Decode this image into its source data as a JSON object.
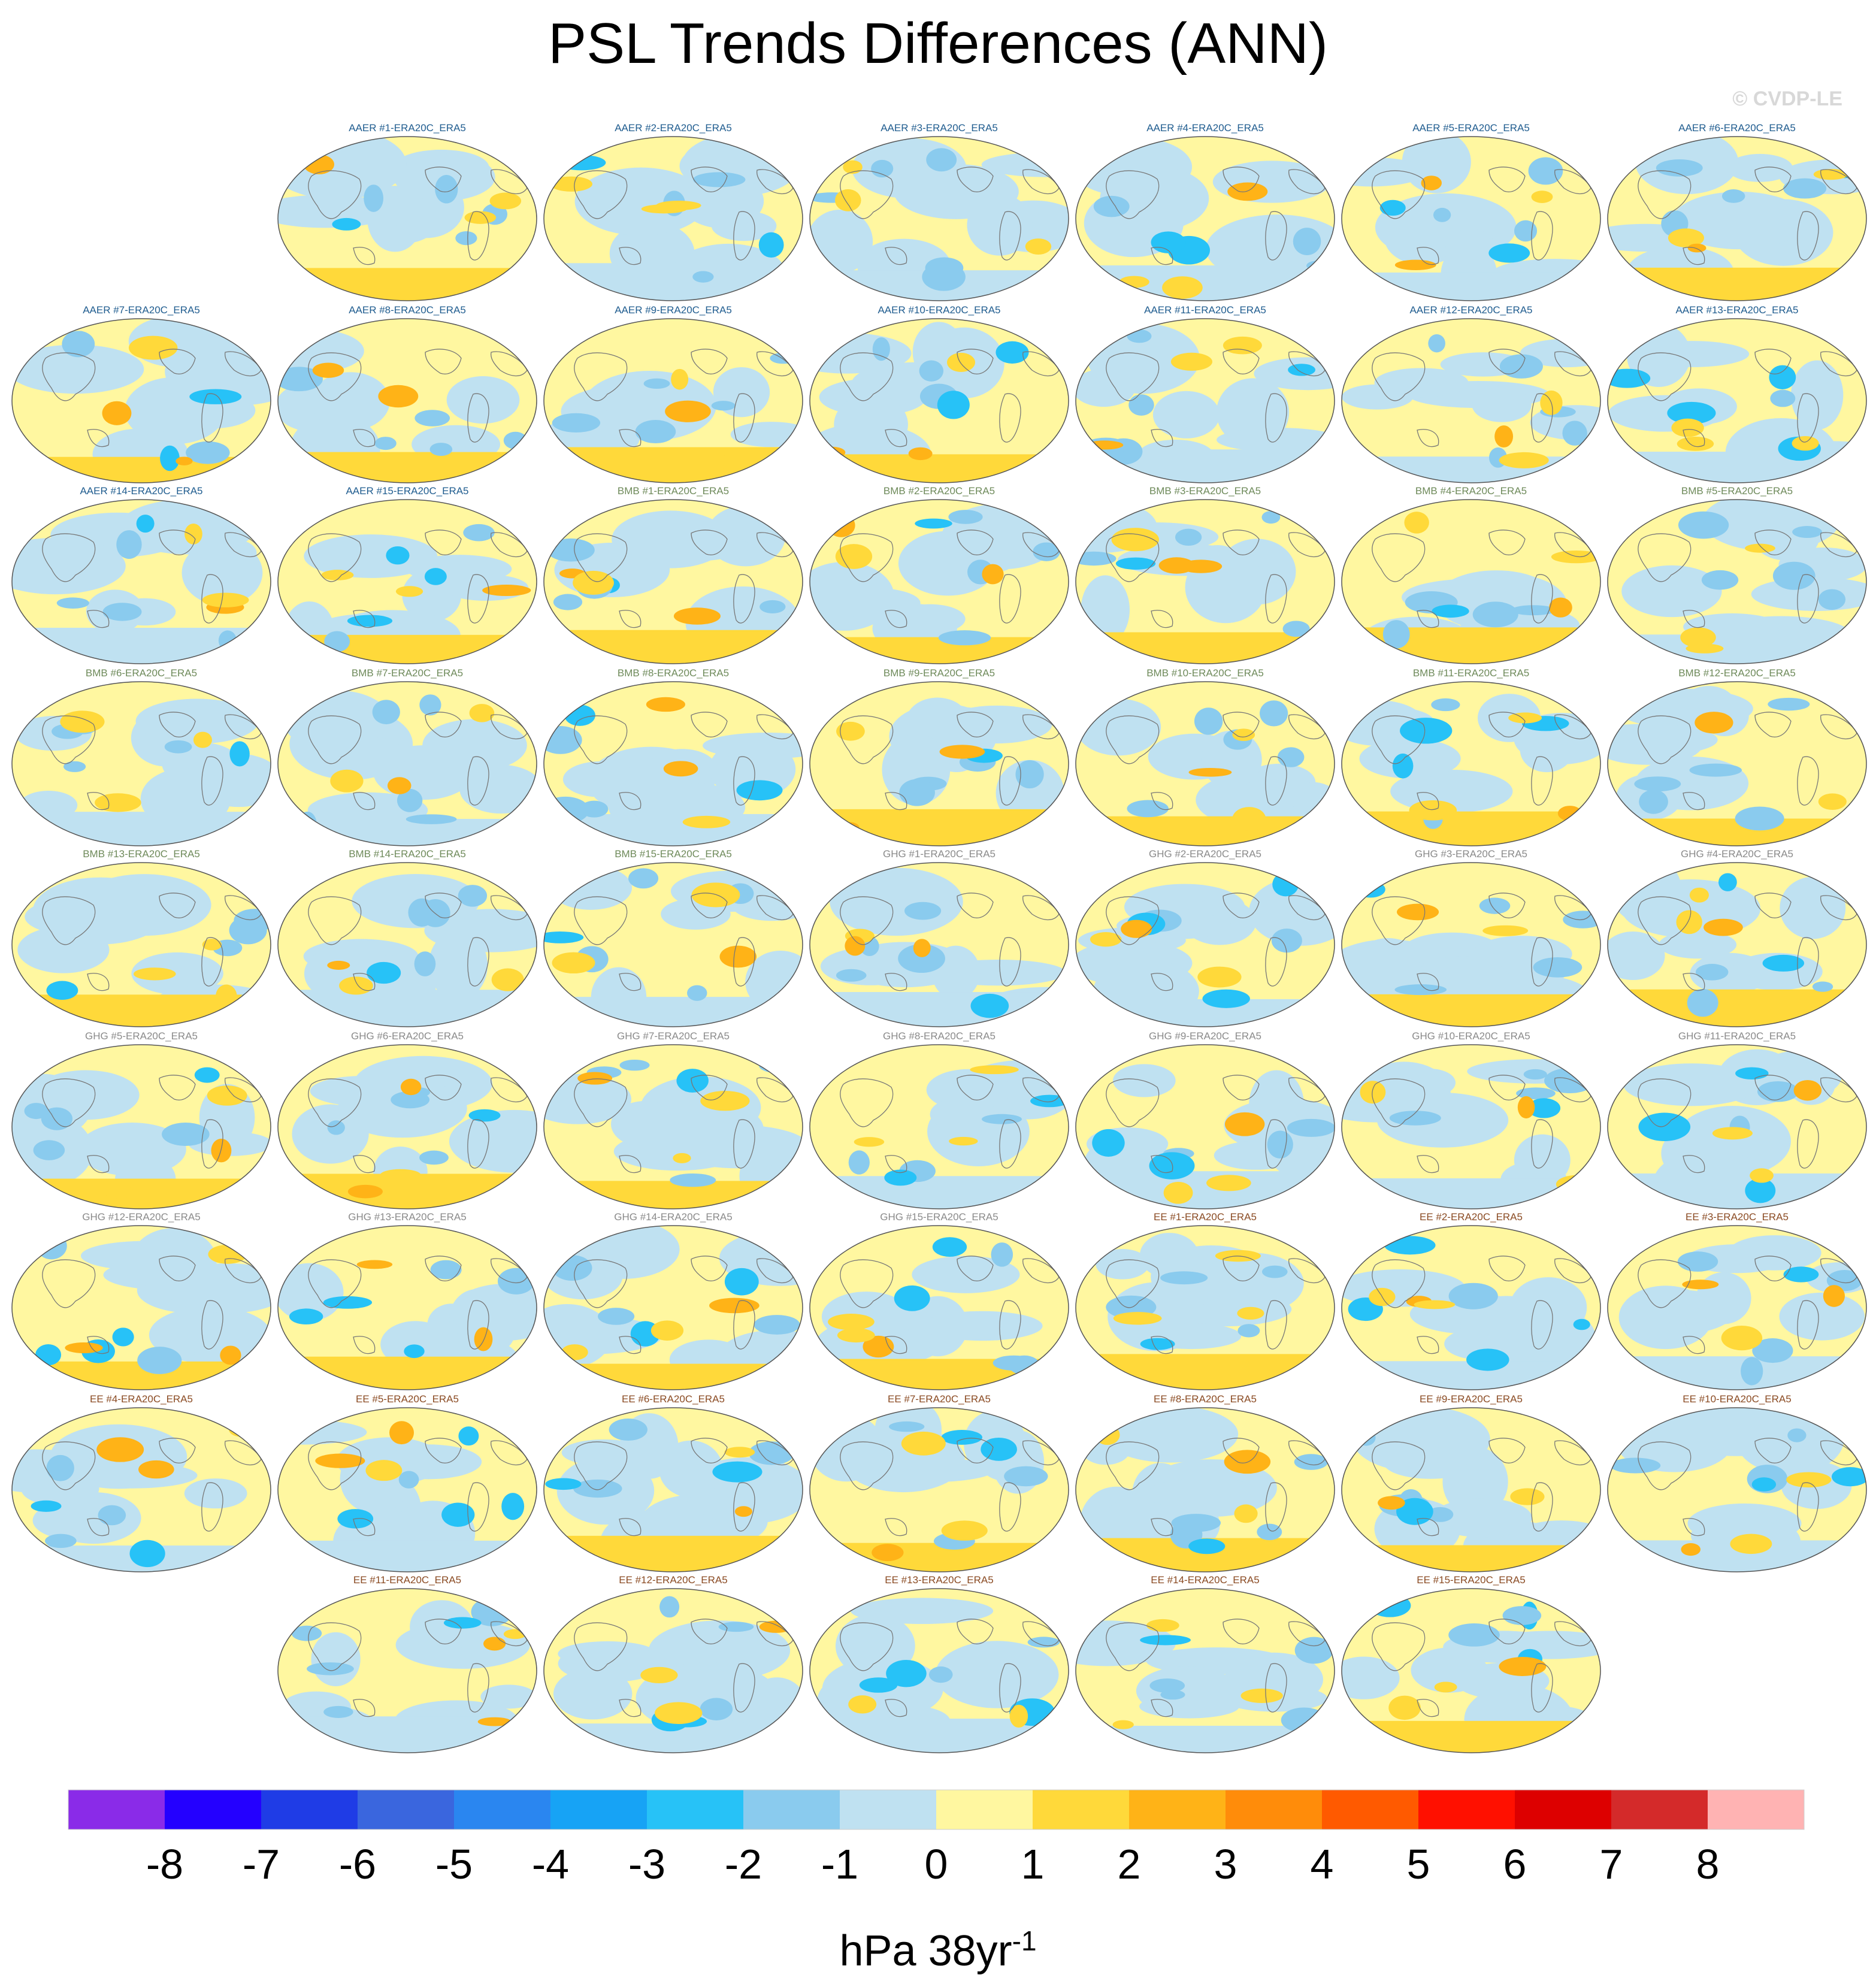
{
  "title": "PSL Trends Differences (ANN)",
  "copyright": "© CVDP-LE",
  "units": {
    "base": "hPa 38yr",
    "exponent": "-1"
  },
  "group_colors": {
    "AAER": "#1f5c8f",
    "BMB": "#6e8a5a",
    "GHG": "#8a8a8a",
    "EE": "#8a4a22"
  },
  "panels": [
    {
      "label": "AAER #1-ERA20C_ERA5",
      "group": "AAER"
    },
    {
      "label": "AAER #2-ERA20C_ERA5",
      "group": "AAER"
    },
    {
      "label": "AAER #3-ERA20C_ERA5",
      "group": "AAER"
    },
    {
      "label": "AAER #4-ERA20C_ERA5",
      "group": "AAER"
    },
    {
      "label": "AAER #5-ERA20C_ERA5",
      "group": "AAER"
    },
    {
      "label": "AAER #6-ERA20C_ERA5",
      "group": "AAER"
    },
    {
      "label": "AAER #7-ERA20C_ERA5",
      "group": "AAER"
    },
    {
      "label": "AAER #8-ERA20C_ERA5",
      "group": "AAER"
    },
    {
      "label": "AAER #9-ERA20C_ERA5",
      "group": "AAER"
    },
    {
      "label": "AAER #10-ERA20C_ERA5",
      "group": "AAER"
    },
    {
      "label": "AAER #11-ERA20C_ERA5",
      "group": "AAER"
    },
    {
      "label": "AAER #12-ERA20C_ERA5",
      "group": "AAER"
    },
    {
      "label": "AAER #13-ERA20C_ERA5",
      "group": "AAER"
    },
    {
      "label": "AAER #14-ERA20C_ERA5",
      "group": "AAER"
    },
    {
      "label": "AAER #15-ERA20C_ERA5",
      "group": "AAER"
    },
    {
      "label": "BMB #1-ERA20C_ERA5",
      "group": "BMB"
    },
    {
      "label": "BMB #2-ERA20C_ERA5",
      "group": "BMB"
    },
    {
      "label": "BMB #3-ERA20C_ERA5",
      "group": "BMB"
    },
    {
      "label": "BMB #4-ERA20C_ERA5",
      "group": "BMB"
    },
    {
      "label": "BMB #5-ERA20C_ERA5",
      "group": "BMB"
    },
    {
      "label": "BMB #6-ERA20C_ERA5",
      "group": "BMB"
    },
    {
      "label": "BMB #7-ERA20C_ERA5",
      "group": "BMB"
    },
    {
      "label": "BMB #8-ERA20C_ERA5",
      "group": "BMB"
    },
    {
      "label": "BMB #9-ERA20C_ERA5",
      "group": "BMB"
    },
    {
      "label": "BMB #10-ERA20C_ERA5",
      "group": "BMB"
    },
    {
      "label": "BMB #11-ERA20C_ERA5",
      "group": "BMB"
    },
    {
      "label": "BMB #12-ERA20C_ERA5",
      "group": "BMB"
    },
    {
      "label": "BMB #13-ERA20C_ERA5",
      "group": "BMB"
    },
    {
      "label": "BMB #14-ERA20C_ERA5",
      "group": "BMB"
    },
    {
      "label": "BMB #15-ERA20C_ERA5",
      "group": "BMB"
    },
    {
      "label": "GHG #1-ERA20C_ERA5",
      "group": "GHG"
    },
    {
      "label": "GHG #2-ERA20C_ERA5",
      "group": "GHG"
    },
    {
      "label": "GHG #3-ERA20C_ERA5",
      "group": "GHG"
    },
    {
      "label": "GHG #4-ERA20C_ERA5",
      "group": "GHG"
    },
    {
      "label": "GHG #5-ERA20C_ERA5",
      "group": "GHG"
    },
    {
      "label": "GHG #6-ERA20C_ERA5",
      "group": "GHG"
    },
    {
      "label": "GHG #7-ERA20C_ERA5",
      "group": "GHG"
    },
    {
      "label": "GHG #8-ERA20C_ERA5",
      "group": "GHG"
    },
    {
      "label": "GHG #9-ERA20C_ERA5",
      "group": "GHG"
    },
    {
      "label": "GHG #10-ERA20C_ERA5",
      "group": "GHG"
    },
    {
      "label": "GHG #11-ERA20C_ERA5",
      "group": "GHG"
    },
    {
      "label": "GHG #12-ERA20C_ERA5",
      "group": "GHG"
    },
    {
      "label": "GHG #13-ERA20C_ERA5",
      "group": "GHG"
    },
    {
      "label": "GHG #14-ERA20C_ERA5",
      "group": "GHG"
    },
    {
      "label": "GHG #15-ERA20C_ERA5",
      "group": "GHG"
    },
    {
      "label": "EE #1-ERA20C_ERA5",
      "group": "EE"
    },
    {
      "label": "EE #2-ERA20C_ERA5",
      "group": "EE"
    },
    {
      "label": "EE #3-ERA20C_ERA5",
      "group": "EE"
    },
    {
      "label": "EE #4-ERA20C_ERA5",
      "group": "EE"
    },
    {
      "label": "EE #5-ERA20C_ERA5",
      "group": "EE"
    },
    {
      "label": "EE #6-ERA20C_ERA5",
      "group": "EE"
    },
    {
      "label": "EE #7-ERA20C_ERA5",
      "group": "EE"
    },
    {
      "label": "EE #8-ERA20C_ERA5",
      "group": "EE"
    },
    {
      "label": "EE #9-ERA20C_ERA5",
      "group": "EE"
    },
    {
      "label": "EE #10-ERA20C_ERA5",
      "group": "EE"
    },
    {
      "label": "EE #11-ERA20C_ERA5",
      "group": "EE"
    },
    {
      "label": "EE #12-ERA20C_ERA5",
      "group": "EE"
    },
    {
      "label": "EE #13-ERA20C_ERA5",
      "group": "EE"
    },
    {
      "label": "EE #14-ERA20C_ERA5",
      "group": "EE"
    },
    {
      "label": "EE #15-ERA20C_ERA5",
      "group": "EE"
    }
  ],
  "colorbar": {
    "tick_labels": [
      "-8",
      "-7",
      "-6",
      "-5",
      "-4",
      "-3",
      "-2",
      "-1",
      "0",
      "1",
      "2",
      "3",
      "4",
      "5",
      "6",
      "7",
      "8"
    ],
    "colors": [
      "#8a2be8",
      "#2400ff",
      "#1f3ce6",
      "#3a66de",
      "#2a86f0",
      "#17a3f5",
      "#27c2f7",
      "#8acbee",
      "#bfe1f1",
      "#fff7a0",
      "#ffd93a",
      "#ffb317",
      "#ff8c0a",
      "#ff5a00",
      "#ff1000",
      "#dd0000",
      "#d42a2a",
      "#ffb3b3"
    ]
  }
}
